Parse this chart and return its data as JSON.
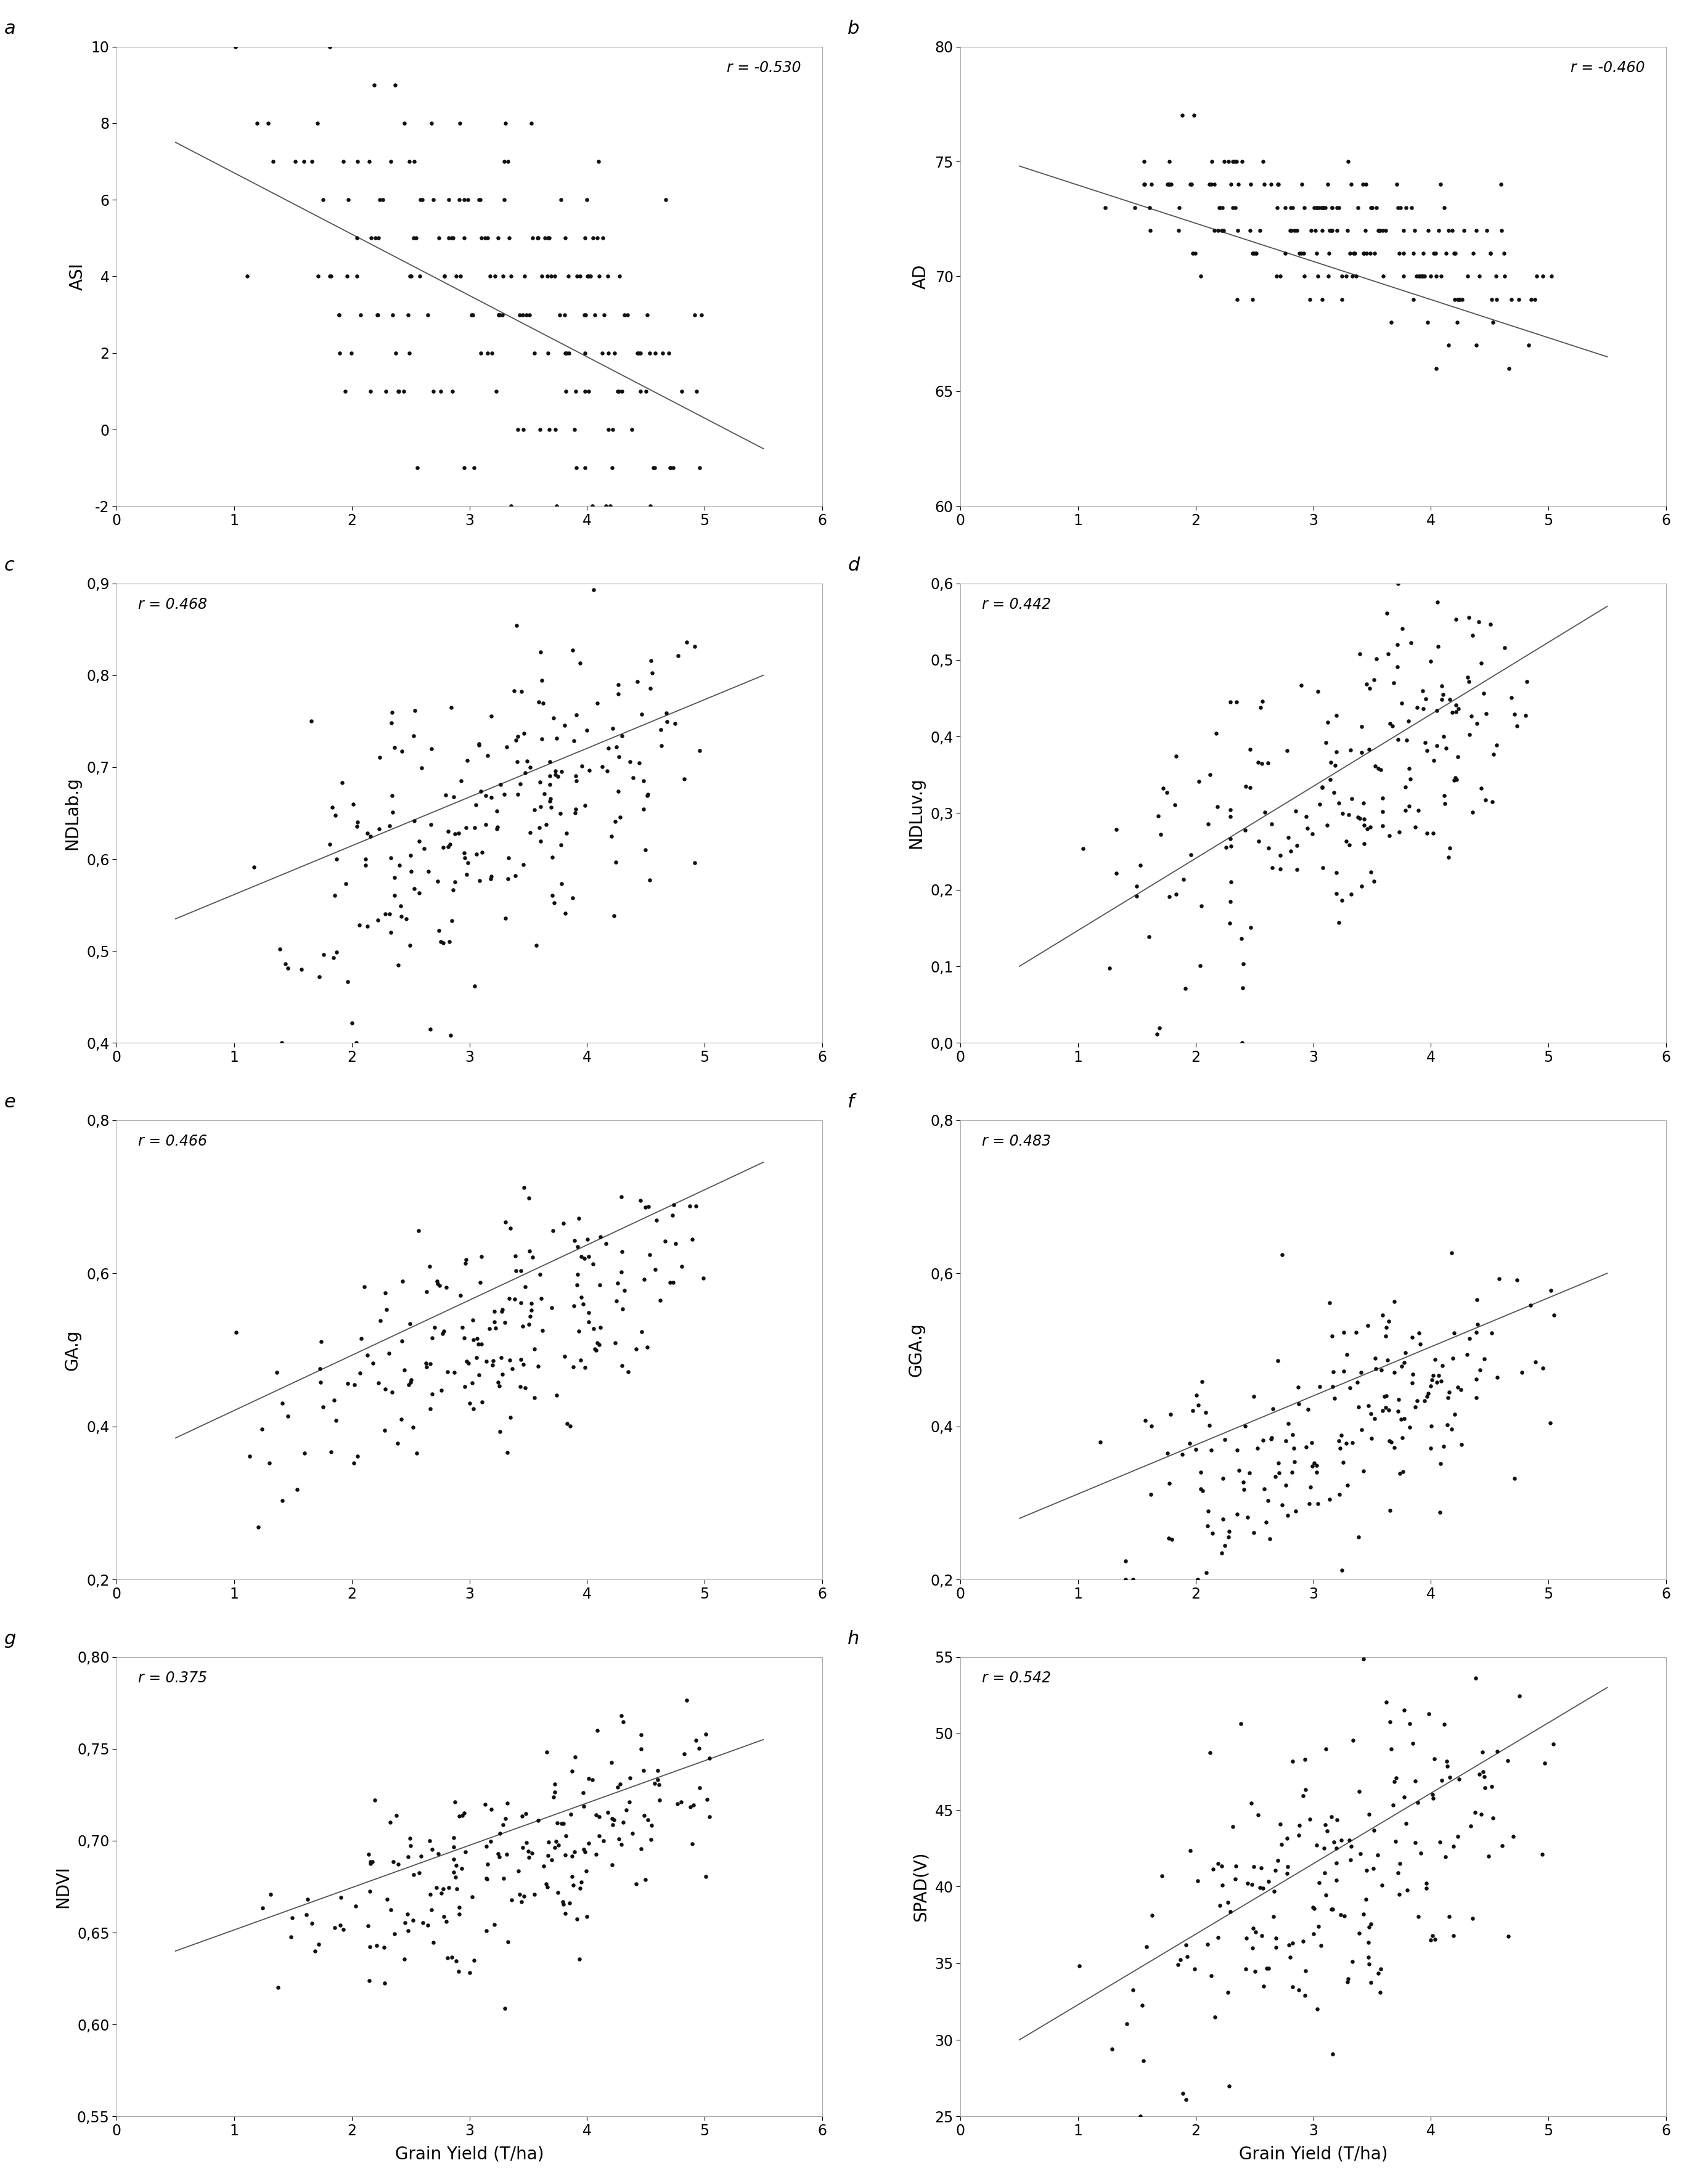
{
  "panels": [
    {
      "label": "a",
      "ylabel": "ASI",
      "r_str": "r = -0.530",
      "r_pos": "upper right",
      "ylim": [
        -2,
        10
      ],
      "yticks": [
        -2,
        0,
        2,
        4,
        6,
        8,
        10
      ],
      "ytick_labels": [
        "-2",
        "0",
        "2",
        "4",
        "6",
        "8",
        "10"
      ],
      "xlim": [
        0,
        6
      ],
      "xticks": [
        0,
        1,
        2,
        3,
        4,
        5,
        6
      ],
      "show_xlabel": false,
      "line_x": [
        0.5,
        5.5
      ],
      "line_y": [
        7.5,
        -0.5
      ]
    },
    {
      "label": "b",
      "ylabel": "AD",
      "r_str": "r = -0.460",
      "r_pos": "upper right",
      "ylim": [
        60,
        80
      ],
      "yticks": [
        60,
        65,
        70,
        75,
        80
      ],
      "ytick_labels": [
        "60",
        "65",
        "70",
        "75",
        "80"
      ],
      "xlim": [
        0,
        6
      ],
      "xticks": [
        0,
        1,
        2,
        3,
        4,
        5,
        6
      ],
      "show_xlabel": false,
      "line_x": [
        0.5,
        5.5
      ],
      "line_y": [
        74.8,
        66.5
      ]
    },
    {
      "label": "c",
      "ylabel": "NDLab.g",
      "r_str": "r = 0.468",
      "r_pos": "upper left",
      "ylim": [
        0.4,
        0.9
      ],
      "yticks": [
        0.4,
        0.5,
        0.6,
        0.7,
        0.8,
        0.9
      ],
      "ytick_labels": [
        "0,4",
        "0,5",
        "0,6",
        "0,7",
        "0,8",
        "0,9"
      ],
      "xlim": [
        0,
        6
      ],
      "xticks": [
        0,
        1,
        2,
        3,
        4,
        5,
        6
      ],
      "show_xlabel": false,
      "line_x": [
        0.5,
        5.5
      ],
      "line_y": [
        0.535,
        0.8
      ]
    },
    {
      "label": "d",
      "ylabel": "NDLuv.g",
      "r_str": "r = 0.442",
      "r_pos": "upper left",
      "ylim": [
        0.0,
        0.6
      ],
      "yticks": [
        0.0,
        0.1,
        0.2,
        0.3,
        0.4,
        0.5,
        0.6
      ],
      "ytick_labels": [
        "0,0",
        "0,1",
        "0,2",
        "0,3",
        "0,4",
        "0,5",
        "0,6"
      ],
      "xlim": [
        0,
        6
      ],
      "xticks": [
        0,
        1,
        2,
        3,
        4,
        5,
        6
      ],
      "show_xlabel": false,
      "line_x": [
        0.5,
        5.5
      ],
      "line_y": [
        0.1,
        0.57
      ]
    },
    {
      "label": "e",
      "ylabel": "GA.g",
      "r_str": "r = 0.466",
      "r_pos": "upper left",
      "ylim": [
        0.2,
        0.8
      ],
      "yticks": [
        0.2,
        0.4,
        0.6,
        0.8
      ],
      "ytick_labels": [
        "0,2",
        "0,4",
        "0,6",
        "0,8"
      ],
      "xlim": [
        0,
        6
      ],
      "xticks": [
        0,
        1,
        2,
        3,
        4,
        5,
        6
      ],
      "show_xlabel": false,
      "line_x": [
        0.5,
        5.5
      ],
      "line_y": [
        0.385,
        0.745
      ]
    },
    {
      "label": "f",
      "ylabel": "GGA.g",
      "r_str": "r = 0.483",
      "r_pos": "upper left",
      "ylim": [
        0.2,
        0.8
      ],
      "yticks": [
        0.2,
        0.4,
        0.6,
        0.8
      ],
      "ytick_labels": [
        "0,2",
        "0,4",
        "0,6",
        "0,8"
      ],
      "xlim": [
        0,
        6
      ],
      "xticks": [
        0,
        1,
        2,
        3,
        4,
        5,
        6
      ],
      "show_xlabel": false,
      "line_x": [
        0.5,
        5.5
      ],
      "line_y": [
        0.28,
        0.6
      ]
    },
    {
      "label": "g",
      "ylabel": "NDVI",
      "r_str": "r = 0.375",
      "r_pos": "upper left",
      "ylim": [
        0.55,
        0.8
      ],
      "yticks": [
        0.55,
        0.6,
        0.65,
        0.7,
        0.75,
        0.8
      ],
      "ytick_labels": [
        "0,55",
        "0,60",
        "0,65",
        "0,70",
        "0,75",
        "0,80"
      ],
      "xlim": [
        0,
        6
      ],
      "xticks": [
        0,
        1,
        2,
        3,
        4,
        5,
        6
      ],
      "show_xlabel": true,
      "line_x": [
        0.5,
        5.5
      ],
      "line_y": [
        0.64,
        0.755
      ]
    },
    {
      "label": "h",
      "ylabel": "SPAD(V)",
      "r_str": "r = 0.542",
      "r_pos": "upper left",
      "ylim": [
        25,
        55
      ],
      "yticks": [
        25,
        30,
        35,
        40,
        45,
        50,
        55
      ],
      "ytick_labels": [
        "25",
        "30",
        "35",
        "40",
        "45",
        "50",
        "55"
      ],
      "xlim": [
        0,
        6
      ],
      "xticks": [
        0,
        1,
        2,
        3,
        4,
        5,
        6
      ],
      "show_xlabel": true,
      "line_x": [
        0.5,
        5.5
      ],
      "line_y": [
        30.0,
        53.0
      ]
    }
  ],
  "xlabel": "Grain Yield (T/ha)",
  "figure_bgcolor": "#ffffff",
  "dot_color": "#111111",
  "line_color": "#555555",
  "dot_size": 22,
  "label_fontsize": 20,
  "tick_fontsize": 17,
  "r_fontsize": 17,
  "panel_label_fontsize": 22
}
